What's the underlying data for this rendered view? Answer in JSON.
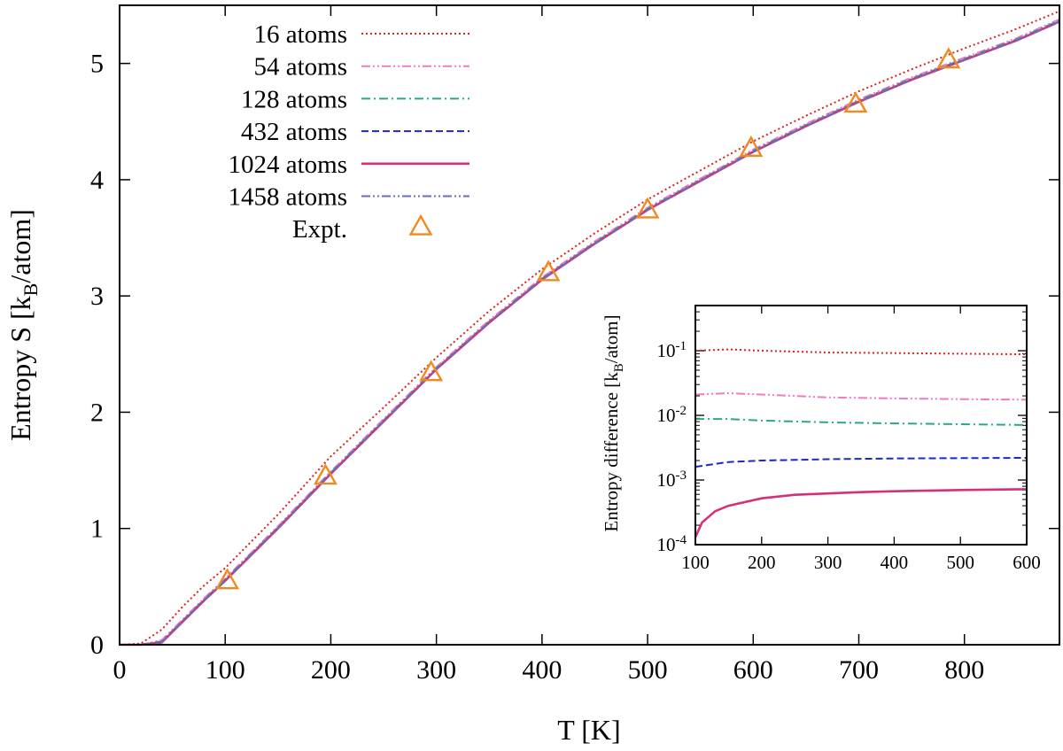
{
  "chart_data": [
    {
      "type": "line",
      "xlabel": "T [K]",
      "ylabel": "Entropy S [k",
      "ylabel_sub": "B",
      "ylabel_tail": "/atom]",
      "xlim": [
        0,
        890
      ],
      "ylim": [
        0,
        5.5
      ],
      "xticks": [
        0,
        100,
        200,
        300,
        400,
        500,
        600,
        700,
        800
      ],
      "yticks": [
        0,
        1,
        2,
        3,
        4,
        5
      ],
      "legend_position": "top-left",
      "series": [
        {
          "name": "16 atoms",
          "color": "#e0201c",
          "dash": "dotted",
          "x": [
            0,
            20,
            40,
            60,
            80,
            100,
            150,
            200,
            250,
            300,
            350,
            400,
            450,
            500,
            550,
            600,
            650,
            700,
            750,
            800,
            850,
            890
          ],
          "y": [
            0,
            0.01,
            0.13,
            0.33,
            0.51,
            0.66,
            1.12,
            1.62,
            2.04,
            2.47,
            2.87,
            3.23,
            3.54,
            3.83,
            4.08,
            4.33,
            4.55,
            4.76,
            4.95,
            5.13,
            5.3,
            5.45
          ]
        },
        {
          "name": "54 atoms",
          "color": "#f07ac0",
          "dash": "dash-dot-dot",
          "x": [
            0,
            20,
            40,
            60,
            80,
            100,
            150,
            200,
            250,
            300,
            350,
            400,
            450,
            500,
            550,
            600,
            650,
            700,
            750,
            800,
            850,
            890
          ],
          "y": [
            0,
            0.0,
            0.04,
            0.22,
            0.4,
            0.57,
            1.02,
            1.49,
            1.94,
            2.39,
            2.79,
            3.16,
            3.47,
            3.76,
            4.01,
            4.26,
            4.48,
            4.69,
            4.88,
            5.05,
            5.22,
            5.38
          ]
        },
        {
          "name": "128 atoms",
          "color": "#2ca58d",
          "dash": "dash-dot",
          "x": [
            0,
            20,
            40,
            60,
            80,
            100,
            150,
            200,
            250,
            300,
            350,
            400,
            450,
            500,
            550,
            600,
            650,
            700,
            750,
            800,
            850,
            890
          ],
          "y": [
            0,
            0.0,
            0.03,
            0.21,
            0.39,
            0.56,
            1.01,
            1.48,
            1.93,
            2.38,
            2.78,
            3.15,
            3.46,
            3.75,
            4.0,
            4.25,
            4.47,
            4.68,
            4.87,
            5.04,
            5.21,
            5.37
          ]
        },
        {
          "name": "432 atoms",
          "color": "#1a2ac8",
          "dash": "dashed",
          "x": [
            0,
            20,
            40,
            60,
            80,
            100,
            150,
            200,
            250,
            300,
            350,
            400,
            450,
            500,
            550,
            600,
            650,
            700,
            750,
            800,
            850,
            890
          ],
          "y": [
            0,
            0.0,
            0.02,
            0.2,
            0.38,
            0.55,
            1.0,
            1.47,
            1.92,
            2.37,
            2.77,
            3.14,
            3.45,
            3.74,
            3.99,
            4.24,
            4.46,
            4.67,
            4.86,
            5.03,
            5.2,
            5.36
          ]
        },
        {
          "name": "1024 atoms",
          "color": "#d6307a",
          "dash": "solid",
          "x": [
            0,
            20,
            40,
            60,
            80,
            100,
            150,
            200,
            250,
            300,
            350,
            400,
            450,
            500,
            550,
            600,
            650,
            700,
            750,
            800,
            850,
            890
          ],
          "y": [
            0,
            0.0,
            0.02,
            0.2,
            0.38,
            0.55,
            1.0,
            1.47,
            1.92,
            2.37,
            2.77,
            3.14,
            3.45,
            3.74,
            3.99,
            4.24,
            4.46,
            4.67,
            4.86,
            5.03,
            5.2,
            5.36
          ]
        },
        {
          "name": "1458 atoms",
          "color": "#6a6ac0",
          "dash": "dash-dot-dot",
          "x": [
            0,
            20,
            40,
            60,
            80,
            100,
            150,
            200,
            250,
            300,
            350,
            400,
            450,
            500,
            550,
            600,
            650,
            700,
            750,
            800,
            850,
            890
          ],
          "y": [
            0,
            0.0,
            0.02,
            0.2,
            0.38,
            0.55,
            1.0,
            1.47,
            1.92,
            2.37,
            2.77,
            3.14,
            3.45,
            3.74,
            3.99,
            4.24,
            4.46,
            4.67,
            4.86,
            5.03,
            5.2,
            5.36
          ]
        }
      ],
      "points": {
        "name": "Expt.",
        "color": "#f08a1c",
        "marker": "triangle",
        "x": [
          102,
          195,
          295,
          406,
          500,
          598,
          697,
          785
        ],
        "y": [
          0.55,
          1.45,
          2.34,
          3.2,
          3.74,
          4.27,
          4.65,
          5.03
        ]
      }
    },
    {
      "type": "line",
      "subtype": "inset",
      "xlabel": "",
      "ylabel": "Entropy difference [k",
      "ylabel_sub": "B",
      "ylabel_tail": "/atom]",
      "xlim": [
        100,
        600
      ],
      "ylim": [
        0.0001,
        0.5
      ],
      "yscale": "log",
      "xticks": [
        100,
        200,
        300,
        400,
        500,
        600
      ],
      "yticks": [
        {
          "value": 0.1,
          "base": "10",
          "exp": "-1"
        },
        {
          "value": 0.01,
          "base": "10",
          "exp": "-2"
        },
        {
          "value": 0.001,
          "base": "10",
          "exp": "-3"
        },
        {
          "value": 0.0001,
          "base": "10",
          "exp": "-4"
        }
      ],
      "series": [
        {
          "name": "16 atoms",
          "color": "#e0201c",
          "dash": "dotted",
          "x": [
            100,
            150,
            200,
            300,
            400,
            500,
            600
          ],
          "y": [
            0.1,
            0.105,
            0.1,
            0.094,
            0.092,
            0.09,
            0.088
          ]
        },
        {
          "name": "54 atoms",
          "color": "#f07ac0",
          "dash": "dash-dot-dot",
          "x": [
            100,
            150,
            200,
            300,
            400,
            500,
            600
          ],
          "y": [
            0.021,
            0.022,
            0.021,
            0.019,
            0.0183,
            0.0178,
            0.0175
          ]
        },
        {
          "name": "128 atoms",
          "color": "#2ca58d",
          "dash": "dash-dot",
          "x": [
            100,
            150,
            200,
            300,
            400,
            500,
            600
          ],
          "y": [
            0.0088,
            0.0088,
            0.0083,
            0.0078,
            0.0075,
            0.0073,
            0.0071
          ]
        },
        {
          "name": "432 atoms",
          "color": "#1a2ac8",
          "dash": "dashed",
          "x": [
            100,
            150,
            200,
            250,
            300,
            400,
            500,
            600
          ],
          "y": [
            0.0016,
            0.0019,
            0.002,
            0.00205,
            0.0021,
            0.00215,
            0.00218,
            0.0022
          ]
        },
        {
          "name": "1024 atoms",
          "color": "#d6307a",
          "dash": "solid",
          "x": [
            100,
            110,
            130,
            150,
            200,
            250,
            300,
            350,
            400,
            500,
            600
          ],
          "y": [
            0.00013,
            0.00022,
            0.00033,
            0.0004,
            0.00052,
            0.00059,
            0.00062,
            0.00065,
            0.00067,
            0.0007,
            0.00072
          ]
        }
      ]
    }
  ]
}
